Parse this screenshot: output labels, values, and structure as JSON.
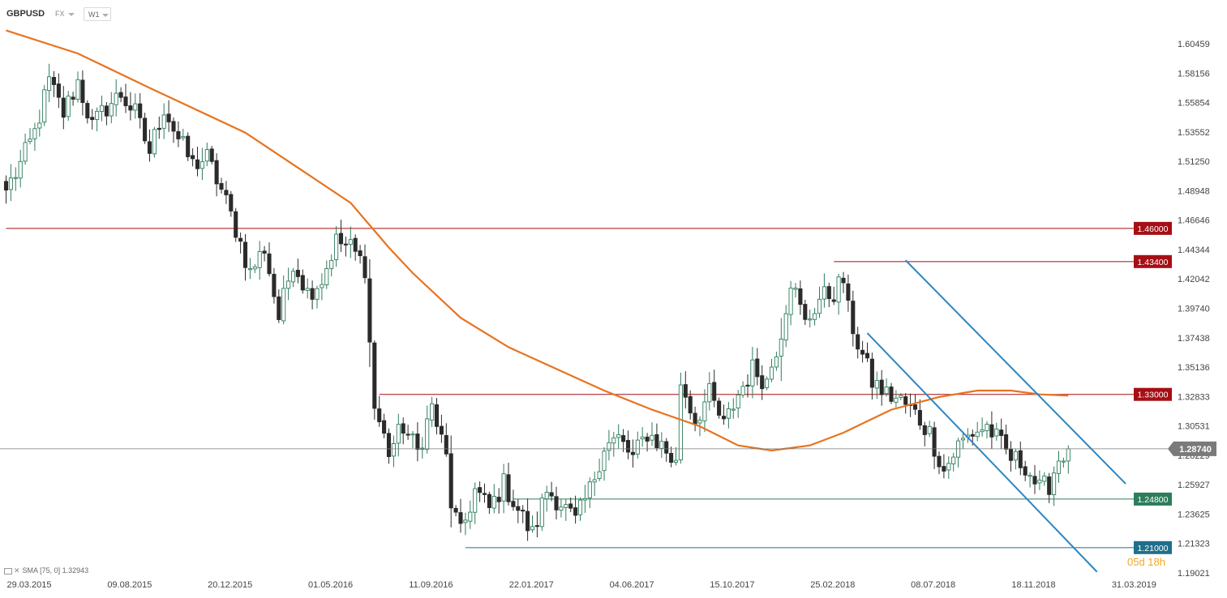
{
  "header": {
    "symbol": "GBPUSD",
    "market": "FX",
    "timeframe": "W1"
  },
  "indicator": {
    "label": "SMA",
    "params": "[75, 0]",
    "value": "1.32943"
  },
  "countdown": "05d 18h",
  "colors": {
    "bull": "#2e7d5b",
    "bear": "#2b2b2b",
    "sma": "#e8731f",
    "channel": "#2e86c1",
    "resistance": "#a50f15",
    "support": "#2e7d5b",
    "support_low": "#1f6f8b",
    "price": "#7a7a7a"
  },
  "chart_data": {
    "type": "candlestick",
    "title": "",
    "xlabel": "",
    "ylabel": "",
    "ylim": [
      1.1785,
      1.6255
    ],
    "y_ticks": [
      "1.60459",
      "1.58156",
      "1.55854",
      "1.53552",
      "1.51250",
      "1.48948",
      "1.46646",
      "1.44344",
      "1.42042",
      "1.39740",
      "1.37438",
      "1.35136",
      "1.32833",
      "1.30531",
      "1.28229",
      "1.25927",
      "1.23625",
      "1.21323",
      "1.19021"
    ],
    "x_ticks": [
      "29.03.2015",
      "09.08.2015",
      "20.12.2015",
      "01.05.2016",
      "11.09.2016",
      "22.01.2017",
      "04.06.2017",
      "15.10.2017",
      "25.02.2018",
      "08.07.2018",
      "18.11.2018",
      "31.03.2019"
    ],
    "close_anchors": [
      [
        0,
        1.49
      ],
      [
        3,
        1.51
      ],
      [
        6,
        1.535
      ],
      [
        9,
        1.575
      ],
      [
        12,
        1.55
      ],
      [
        15,
        1.575
      ],
      [
        18,
        1.54
      ],
      [
        21,
        1.555
      ],
      [
        24,
        1.565
      ],
      [
        27,
        1.55
      ],
      [
        30,
        1.52
      ],
      [
        33,
        1.555
      ],
      [
        36,
        1.53
      ],
      [
        39,
        1.51
      ],
      [
        42,
        1.515
      ],
      [
        45,
        1.49
      ],
      [
        48,
        1.46
      ],
      [
        51,
        1.425
      ],
      [
        54,
        1.445
      ],
      [
        57,
        1.39
      ],
      [
        60,
        1.435
      ],
      [
        63,
        1.41
      ],
      [
        66,
        1.42
      ],
      [
        69,
        1.45
      ],
      [
        72,
        1.445
      ],
      [
        75,
        1.43
      ],
      [
        76,
        1.37
      ],
      [
        77,
        1.32
      ],
      [
        80,
        1.285
      ],
      [
        83,
        1.305
      ],
      [
        86,
        1.285
      ],
      [
        89,
        1.32
      ],
      [
        92,
        1.28
      ],
      [
        93,
        1.245
      ],
      [
        95,
        1.22
      ],
      [
        98,
        1.255
      ],
      [
        101,
        1.24
      ],
      [
        104,
        1.26
      ],
      [
        107,
        1.24
      ],
      [
        110,
        1.22
      ],
      [
        113,
        1.255
      ],
      [
        116,
        1.245
      ],
      [
        119,
        1.23
      ],
      [
        122,
        1.255
      ],
      [
        125,
        1.29
      ],
      [
        128,
        1.295
      ],
      [
        131,
        1.28
      ],
      [
        134,
        1.3
      ],
      [
        137,
        1.29
      ],
      [
        140,
        1.275
      ],
      [
        141,
        1.34
      ],
      [
        144,
        1.31
      ],
      [
        147,
        1.33
      ],
      [
        150,
        1.305
      ],
      [
        153,
        1.33
      ],
      [
        156,
        1.35
      ],
      [
        159,
        1.34
      ],
      [
        162,
        1.38
      ],
      [
        164,
        1.42
      ],
      [
        167,
        1.385
      ],
      [
        170,
        1.405
      ],
      [
        173,
        1.41
      ],
      [
        175,
        1.42
      ],
      [
        176,
        1.395
      ],
      [
        178,
        1.37
      ],
      [
        181,
        1.34
      ],
      [
        184,
        1.33
      ],
      [
        187,
        1.325
      ],
      [
        190,
        1.315
      ],
      [
        193,
        1.3
      ],
      [
        196,
        1.27
      ],
      [
        199,
        1.29
      ],
      [
        202,
        1.3
      ],
      [
        205,
        1.305
      ],
      [
        207,
        1.295
      ],
      [
        210,
        1.28
      ],
      [
        213,
        1.275
      ],
      [
        216,
        1.255
      ],
      [
        218,
        1.26
      ],
      [
        220,
        1.28
      ],
      [
        222,
        1.2874
      ]
    ],
    "sma": {
      "name": "SMA [75, 0]",
      "points": [
        [
          0,
          1.615
        ],
        [
          15,
          1.597
        ],
        [
          30,
          1.57
        ],
        [
          50,
          1.535
        ],
        [
          62,
          1.505
        ],
        [
          72,
          1.48
        ],
        [
          80,
          1.445
        ],
        [
          85,
          1.425
        ],
        [
          95,
          1.39
        ],
        [
          105,
          1.367
        ],
        [
          115,
          1.35
        ],
        [
          125,
          1.333
        ],
        [
          135,
          1.318
        ],
        [
          145,
          1.305
        ],
        [
          153,
          1.29
        ],
        [
          160,
          1.286
        ],
        [
          168,
          1.29
        ],
        [
          175,
          1.3
        ],
        [
          185,
          1.318
        ],
        [
          195,
          1.328
        ],
        [
          203,
          1.333
        ],
        [
          210,
          1.333
        ],
        [
          216,
          1.33
        ],
        [
          222,
          1.329
        ]
      ]
    },
    "levels": [
      {
        "value": 1.46,
        "label": "1.46000",
        "kind": "resistance",
        "from": 0
      },
      {
        "value": 1.434,
        "label": "1.43400",
        "kind": "resistance",
        "from": 173
      },
      {
        "value": 1.33,
        "label": "1.33000",
        "kind": "resistance",
        "from": 78
      },
      {
        "value": 1.248,
        "label": "1.24800",
        "kind": "support",
        "from": 106
      },
      {
        "value": 1.21,
        "label": "1.21000",
        "kind": "support_low",
        "from": 96
      }
    ],
    "channel": [
      {
        "from": [
          188,
          1.435
        ],
        "to": [
          234,
          1.26
        ]
      },
      {
        "from": [
          180,
          1.378
        ],
        "to": [
          228,
          1.191
        ]
      }
    ],
    "last_price": {
      "value": 1.2874,
      "label": "1.28740"
    }
  }
}
